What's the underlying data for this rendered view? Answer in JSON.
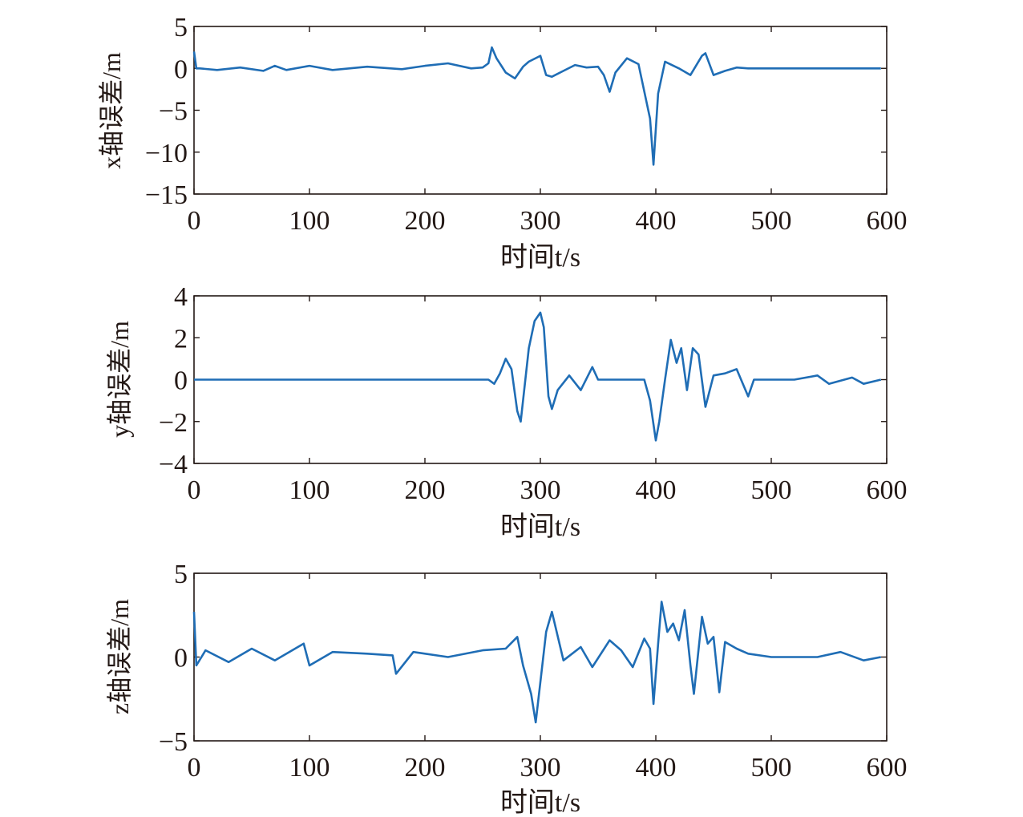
{
  "chart_data": [
    {
      "type": "line",
      "xlabel": "时间t/s",
      "ylabel": "x轴误差/m",
      "xlim": [
        0,
        600
      ],
      "ylim": [
        -15,
        5
      ],
      "xticks": [
        0,
        100,
        200,
        300,
        400,
        500,
        600
      ],
      "yticks": [
        5,
        0,
        -5,
        -10,
        -15
      ],
      "color": "#1f6db5",
      "series": [
        {
          "x": [
            0,
            2,
            5,
            20,
            40,
            60,
            70,
            80,
            100,
            120,
            150,
            180,
            200,
            220,
            240,
            250,
            255,
            258,
            262,
            270,
            278,
            285,
            290,
            300,
            305,
            310,
            320,
            330,
            340,
            350,
            355,
            360,
            365,
            375,
            385,
            395,
            398,
            402,
            408,
            420,
            430,
            440,
            443,
            450,
            460,
            470,
            480,
            500,
            520,
            550,
            580,
            595
          ],
          "y": [
            2.0,
            0.0,
            0.0,
            -0.2,
            0.1,
            -0.3,
            0.3,
            -0.2,
            0.3,
            -0.2,
            0.2,
            -0.1,
            0.3,
            0.6,
            0.0,
            0.1,
            0.6,
            2.5,
            1.2,
            -0.5,
            -1.2,
            0.2,
            0.8,
            1.5,
            -0.8,
            -1.0,
            -0.3,
            0.4,
            0.1,
            0.2,
            -0.8,
            -2.8,
            -0.5,
            1.2,
            0.5,
            -6.0,
            -11.5,
            -3.0,
            0.8,
            0.0,
            -0.8,
            1.5,
            1.8,
            -0.8,
            -0.3,
            0.1,
            0.0,
            0.0,
            0.0,
            0.0,
            0.0,
            0.0
          ]
        }
      ]
    },
    {
      "type": "line",
      "xlabel": "时间t/s",
      "ylabel": "y轴误差/m",
      "xlim": [
        0,
        600
      ],
      "ylim": [
        -4,
        4
      ],
      "xticks": [
        0,
        100,
        200,
        300,
        400,
        500,
        600
      ],
      "yticks": [
        4,
        2,
        0,
        -2,
        -4
      ],
      "color": "#1f6db5",
      "series": [
        {
          "x": [
            0,
            50,
            100,
            150,
            200,
            255,
            260,
            265,
            270,
            275,
            280,
            283,
            290,
            295,
            300,
            303,
            307,
            310,
            315,
            325,
            335,
            345,
            350,
            360,
            380,
            390,
            395,
            400,
            403,
            408,
            413,
            418,
            422,
            427,
            432,
            437,
            443,
            450,
            460,
            470,
            480,
            485,
            490,
            500,
            520,
            540,
            550,
            570,
            580,
            595
          ],
          "y": [
            0.0,
            0.0,
            0.0,
            0.0,
            0.0,
            0.0,
            -0.2,
            0.3,
            1.0,
            0.5,
            -1.5,
            -2.0,
            1.5,
            2.8,
            3.2,
            2.5,
            -0.8,
            -1.4,
            -0.5,
            0.2,
            -0.5,
            0.6,
            0.0,
            0.0,
            0.0,
            0.0,
            -1.0,
            -2.9,
            -2.0,
            0.0,
            1.9,
            0.8,
            1.5,
            -0.5,
            1.5,
            1.2,
            -1.3,
            0.2,
            0.3,
            0.5,
            -0.8,
            0.0,
            0.0,
            0.0,
            0.0,
            0.2,
            -0.2,
            0.1,
            -0.2,
            0.0
          ]
        }
      ]
    },
    {
      "type": "line",
      "xlabel": "时间t/s",
      "ylabel": "z轴误差/m",
      "xlim": [
        0,
        600
      ],
      "ylim": [
        -5,
        5
      ],
      "xticks": [
        0,
        100,
        200,
        300,
        400,
        500,
        600
      ],
      "yticks": [
        5,
        0,
        -5
      ],
      "color": "#1f6db5",
      "series": [
        {
          "x": [
            0,
            2,
            10,
            30,
            50,
            70,
            95,
            100,
            120,
            150,
            172,
            175,
            190,
            220,
            250,
            270,
            280,
            285,
            292,
            296,
            300,
            305,
            310,
            320,
            335,
            345,
            360,
            370,
            380,
            390,
            395,
            398,
            402,
            405,
            410,
            415,
            420,
            425,
            430,
            433,
            440,
            445,
            450,
            455,
            460,
            470,
            480,
            500,
            540,
            560,
            580,
            595
          ],
          "y": [
            2.7,
            -0.5,
            0.4,
            -0.3,
            0.5,
            -0.2,
            0.8,
            -0.5,
            0.3,
            0.2,
            0.1,
            -1.0,
            0.3,
            0.0,
            0.4,
            0.5,
            1.2,
            -0.5,
            -2.2,
            -3.9,
            -1.5,
            1.5,
            2.7,
            -0.2,
            0.6,
            -0.6,
            1.0,
            0.4,
            -0.6,
            1.1,
            0.5,
            -2.8,
            0.8,
            3.3,
            1.5,
            2.0,
            1.0,
            2.8,
            -0.5,
            -2.2,
            2.4,
            0.8,
            1.2,
            -2.1,
            0.9,
            0.5,
            0.2,
            0.0,
            0.0,
            0.3,
            -0.2,
            0.0
          ]
        }
      ]
    }
  ]
}
